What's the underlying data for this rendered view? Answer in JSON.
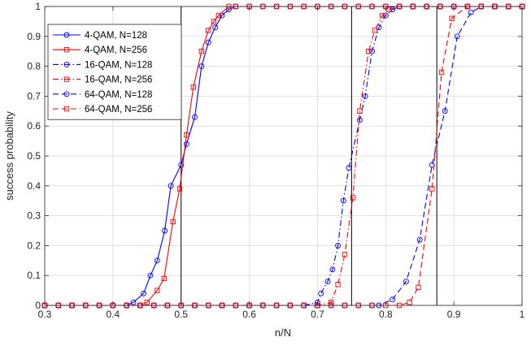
{
  "chart_data": {
    "type": "line",
    "title": "",
    "xlabel": "n/N",
    "ylabel": "success probability",
    "xlim": [
      0.3,
      1.0
    ],
    "ylim": [
      0,
      1
    ],
    "xticks": [
      0.3,
      0.4,
      0.5,
      0.6,
      0.7,
      0.8,
      0.9,
      1
    ],
    "xtick_labels": [
      "0.3",
      "0.4",
      "0.5",
      "0.6",
      "0.7",
      "0.8",
      "0.9",
      "1"
    ],
    "yticks": [
      0,
      0.1,
      0.2,
      0.3,
      0.4,
      0.5,
      0.6,
      0.7,
      0.8,
      0.9,
      1
    ],
    "ytick_labels": [
      "0",
      "0.1",
      "0.2",
      "0.3",
      "0.4",
      "0.5",
      "0.6",
      "0.7",
      "0.8",
      "0.9",
      "1"
    ],
    "grid": true,
    "legend_position": "top-left",
    "vertical_lines": [
      0.5,
      0.75,
      0.875
    ],
    "colors": {
      "blue": "#0000ff",
      "red": "#ff0000",
      "grid": "#dcdcdc",
      "axis": "#262626"
    },
    "series": [
      {
        "name": "4-QAM, N=128",
        "color": "#0000ff",
        "dash": "solid",
        "marker": "circle",
        "points": [
          [
            0.3,
            0
          ],
          [
            0.32,
            0
          ],
          [
            0.34,
            0
          ],
          [
            0.36,
            0
          ],
          [
            0.38,
            0
          ],
          [
            0.4,
            0
          ],
          [
            0.42,
            0
          ],
          [
            0.43,
            0.01
          ],
          [
            0.445,
            0.04
          ],
          [
            0.455,
            0.1
          ],
          [
            0.465,
            0.15
          ],
          [
            0.476,
            0.25
          ],
          [
            0.485,
            0.4
          ],
          [
            0.5,
            0.47
          ],
          [
            0.508,
            0.54
          ],
          [
            0.52,
            0.63
          ],
          [
            0.53,
            0.8
          ],
          [
            0.54,
            0.88
          ],
          [
            0.55,
            0.93
          ],
          [
            0.56,
            0.97
          ],
          [
            0.57,
            0.99
          ],
          [
            0.58,
            1
          ],
          [
            0.6,
            1
          ],
          [
            0.62,
            1
          ],
          [
            0.64,
            1
          ],
          [
            0.66,
            1
          ],
          [
            0.68,
            1
          ],
          [
            0.7,
            1
          ],
          [
            0.72,
            1
          ],
          [
            0.74,
            1
          ],
          [
            0.76,
            1
          ],
          [
            0.78,
            1
          ],
          [
            0.8,
            1
          ],
          [
            0.82,
            1
          ],
          [
            0.84,
            1
          ],
          [
            0.86,
            1
          ],
          [
            0.88,
            1
          ],
          [
            0.9,
            1
          ],
          [
            0.92,
            1
          ],
          [
            0.94,
            1
          ],
          [
            0.96,
            1
          ],
          [
            0.98,
            1
          ],
          [
            1,
            1
          ]
        ]
      },
      {
        "name": "4-QAM, N=256",
        "color": "#ff0000",
        "dash": "solid",
        "marker": "square",
        "points": [
          [
            0.3,
            0
          ],
          [
            0.32,
            0
          ],
          [
            0.34,
            0
          ],
          [
            0.36,
            0
          ],
          [
            0.38,
            0
          ],
          [
            0.4,
            0
          ],
          [
            0.42,
            0
          ],
          [
            0.44,
            0
          ],
          [
            0.45,
            0.01
          ],
          [
            0.465,
            0.05
          ],
          [
            0.475,
            0.09
          ],
          [
            0.488,
            0.28
          ],
          [
            0.498,
            0.39
          ],
          [
            0.508,
            0.57
          ],
          [
            0.518,
            0.73
          ],
          [
            0.53,
            0.85
          ],
          [
            0.54,
            0.92
          ],
          [
            0.548,
            0.95
          ],
          [
            0.555,
            0.97
          ],
          [
            0.57,
            1
          ],
          [
            0.58,
            1
          ],
          [
            0.6,
            1
          ],
          [
            0.62,
            1
          ],
          [
            0.64,
            1
          ],
          [
            0.66,
            1
          ],
          [
            0.68,
            1
          ],
          [
            0.7,
            1
          ],
          [
            0.72,
            1
          ],
          [
            0.74,
            1
          ],
          [
            0.76,
            1
          ],
          [
            0.78,
            1
          ],
          [
            0.8,
            1
          ],
          [
            0.82,
            1
          ],
          [
            0.84,
            1
          ],
          [
            0.86,
            1
          ],
          [
            0.88,
            1
          ],
          [
            0.9,
            1
          ],
          [
            0.92,
            1
          ],
          [
            0.94,
            1
          ],
          [
            0.96,
            1
          ],
          [
            0.98,
            1
          ],
          [
            1,
            1
          ]
        ]
      },
      {
        "name": "16-QAM, N=128",
        "color": "#0000ff",
        "dash": "dashdot",
        "marker": "circle",
        "points": [
          [
            0.3,
            0
          ],
          [
            0.32,
            0
          ],
          [
            0.34,
            0
          ],
          [
            0.36,
            0
          ],
          [
            0.38,
            0
          ],
          [
            0.4,
            0
          ],
          [
            0.42,
            0
          ],
          [
            0.44,
            0
          ],
          [
            0.46,
            0
          ],
          [
            0.48,
            0
          ],
          [
            0.5,
            0
          ],
          [
            0.52,
            0
          ],
          [
            0.54,
            0
          ],
          [
            0.56,
            0
          ],
          [
            0.58,
            0
          ],
          [
            0.6,
            0
          ],
          [
            0.62,
            0
          ],
          [
            0.64,
            0
          ],
          [
            0.66,
            0
          ],
          [
            0.68,
            0
          ],
          [
            0.7,
            0.01
          ],
          [
            0.705,
            0.04
          ],
          [
            0.715,
            0.08
          ],
          [
            0.722,
            0.12
          ],
          [
            0.73,
            0.2
          ],
          [
            0.738,
            0.35
          ],
          [
            0.746,
            0.46
          ],
          [
            0.762,
            0.62
          ],
          [
            0.77,
            0.7
          ],
          [
            0.78,
            0.85
          ],
          [
            0.79,
            0.93
          ],
          [
            0.8,
            0.97
          ],
          [
            0.81,
            0.99
          ],
          [
            0.82,
            1
          ],
          [
            0.84,
            1
          ],
          [
            0.86,
            1
          ],
          [
            0.88,
            1
          ],
          [
            0.9,
            1
          ],
          [
            0.92,
            1
          ],
          [
            0.94,
            1
          ],
          [
            0.96,
            1
          ],
          [
            0.98,
            1
          ],
          [
            1,
            1
          ]
        ]
      },
      {
        "name": "16-QAM, N=256",
        "color": "#ff0000",
        "dash": "dashdot",
        "marker": "square",
        "points": [
          [
            0.3,
            0
          ],
          [
            0.32,
            0
          ],
          [
            0.34,
            0
          ],
          [
            0.36,
            0
          ],
          [
            0.38,
            0
          ],
          [
            0.4,
            0
          ],
          [
            0.42,
            0
          ],
          [
            0.44,
            0
          ],
          [
            0.46,
            0
          ],
          [
            0.48,
            0
          ],
          [
            0.5,
            0
          ],
          [
            0.52,
            0
          ],
          [
            0.54,
            0
          ],
          [
            0.56,
            0
          ],
          [
            0.58,
            0
          ],
          [
            0.6,
            0
          ],
          [
            0.62,
            0
          ],
          [
            0.64,
            0
          ],
          [
            0.66,
            0
          ],
          [
            0.68,
            0
          ],
          [
            0.7,
            0
          ],
          [
            0.72,
            0.01
          ],
          [
            0.73,
            0.07
          ],
          [
            0.74,
            0.17
          ],
          [
            0.752,
            0.36
          ],
          [
            0.762,
            0.65
          ],
          [
            0.775,
            0.85
          ],
          [
            0.784,
            0.92
          ],
          [
            0.795,
            0.97
          ],
          [
            0.805,
            0.99
          ],
          [
            0.82,
            1
          ],
          [
            0.84,
            1
          ],
          [
            0.86,
            1
          ],
          [
            0.88,
            1
          ],
          [
            0.9,
            1
          ],
          [
            0.92,
            1
          ],
          [
            0.94,
            1
          ],
          [
            0.96,
            1
          ],
          [
            0.98,
            1
          ],
          [
            1,
            1
          ]
        ]
      },
      {
        "name": "64-QAM, N=128",
        "color": "#0000ff",
        "dash": "dashed",
        "marker": "circle",
        "points": [
          [
            0.3,
            0
          ],
          [
            0.32,
            0
          ],
          [
            0.34,
            0
          ],
          [
            0.36,
            0
          ],
          [
            0.38,
            0
          ],
          [
            0.4,
            0
          ],
          [
            0.42,
            0
          ],
          [
            0.44,
            0
          ],
          [
            0.46,
            0
          ],
          [
            0.48,
            0
          ],
          [
            0.5,
            0
          ],
          [
            0.52,
            0
          ],
          [
            0.54,
            0
          ],
          [
            0.56,
            0
          ],
          [
            0.58,
            0
          ],
          [
            0.6,
            0
          ],
          [
            0.62,
            0
          ],
          [
            0.64,
            0
          ],
          [
            0.66,
            0
          ],
          [
            0.68,
            0
          ],
          [
            0.7,
            0
          ],
          [
            0.72,
            0
          ],
          [
            0.74,
            0
          ],
          [
            0.76,
            0
          ],
          [
            0.78,
            0
          ],
          [
            0.79,
            0
          ],
          [
            0.81,
            0.02
          ],
          [
            0.83,
            0.08
          ],
          [
            0.85,
            0.22
          ],
          [
            0.868,
            0.47
          ],
          [
            0.887,
            0.65
          ],
          [
            0.905,
            0.9
          ],
          [
            0.925,
            0.98
          ],
          [
            0.94,
            1
          ],
          [
            0.96,
            1
          ],
          [
            0.98,
            1
          ],
          [
            1,
            1
          ]
        ]
      },
      {
        "name": "64-QAM, N=256",
        "color": "#ff0000",
        "dash": "dashed",
        "marker": "square",
        "points": [
          [
            0.3,
            0
          ],
          [
            0.32,
            0
          ],
          [
            0.34,
            0
          ],
          [
            0.36,
            0
          ],
          [
            0.38,
            0
          ],
          [
            0.4,
            0
          ],
          [
            0.42,
            0
          ],
          [
            0.44,
            0
          ],
          [
            0.46,
            0
          ],
          [
            0.48,
            0
          ],
          [
            0.5,
            0
          ],
          [
            0.52,
            0
          ],
          [
            0.54,
            0
          ],
          [
            0.56,
            0
          ],
          [
            0.58,
            0
          ],
          [
            0.6,
            0
          ],
          [
            0.62,
            0
          ],
          [
            0.64,
            0
          ],
          [
            0.66,
            0
          ],
          [
            0.68,
            0
          ],
          [
            0.7,
            0
          ],
          [
            0.72,
            0
          ],
          [
            0.74,
            0
          ],
          [
            0.76,
            0
          ],
          [
            0.78,
            0
          ],
          [
            0.8,
            0
          ],
          [
            0.82,
            0
          ],
          [
            0.835,
            0.01
          ],
          [
            0.848,
            0.06
          ],
          [
            0.868,
            0.39
          ],
          [
            0.882,
            0.78
          ],
          [
            0.897,
            0.96
          ],
          [
            0.92,
            1
          ],
          [
            0.94,
            1
          ],
          [
            0.96,
            1
          ],
          [
            0.98,
            1
          ],
          [
            1,
            1
          ]
        ]
      }
    ]
  }
}
